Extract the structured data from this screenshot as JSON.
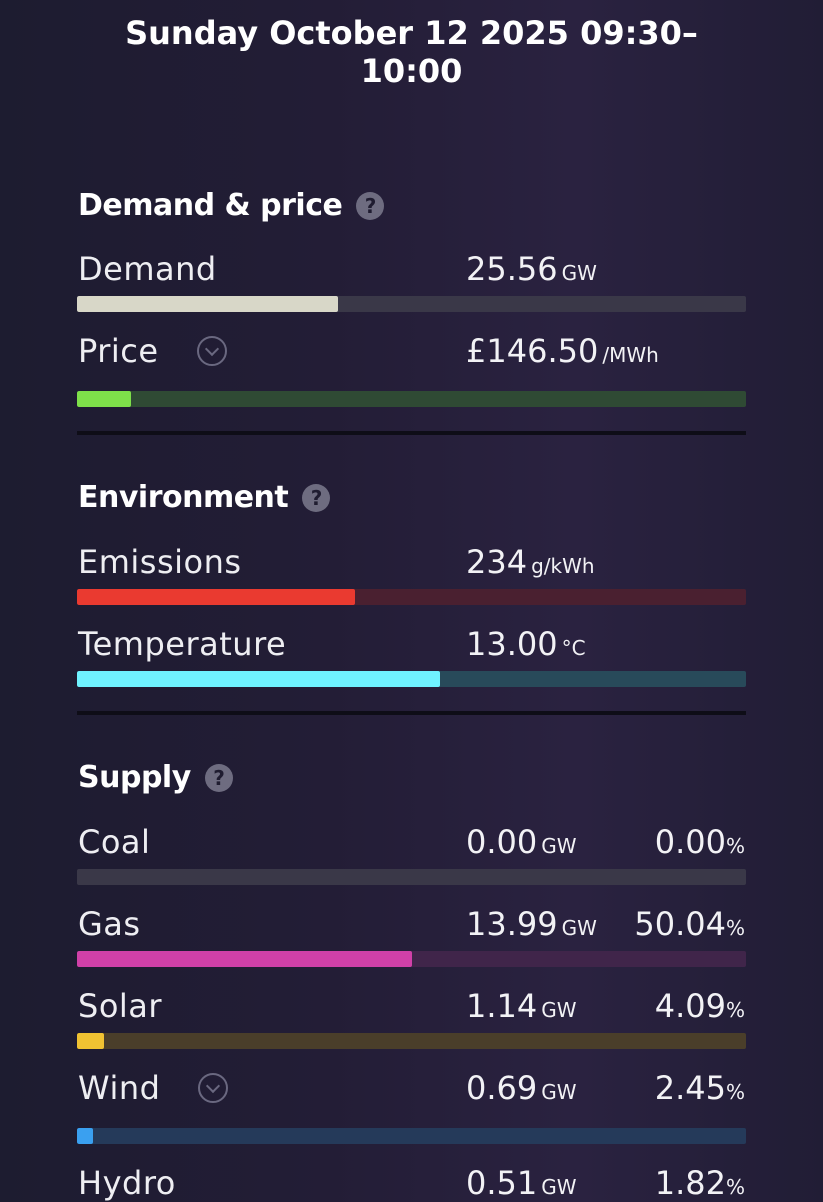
{
  "header": {
    "title_line1": "Sunday October 12 2025 09:30–",
    "title_line2": "10:00"
  },
  "demand_price": {
    "heading": "Demand & price",
    "help": "?",
    "demand": {
      "label": "Demand",
      "value": "25.56",
      "unit": "GW",
      "level": 0.39,
      "color": "#d8d7c8",
      "track": "#3a3848"
    },
    "price": {
      "label": "Price",
      "value": "£146.50",
      "unit": "/MWh",
      "level": 0.08,
      "color": "#7ee04a",
      "track": "#2f4a34"
    }
  },
  "environment": {
    "heading": "Environment",
    "help": "?",
    "emissions": {
      "label": "Emissions",
      "value": "234",
      "unit": "g/kWh",
      "level": 0.415,
      "color": "#ea3a30",
      "track": "#4a2030"
    },
    "temperature": {
      "label": "Temperature",
      "value": "13.00",
      "unit": "°C",
      "level": 0.543,
      "color": "#6ff2ff",
      "track": "#284a5a"
    }
  },
  "supply": {
    "heading": "Supply",
    "help": "?",
    "items": [
      {
        "label": "Coal",
        "value": "0.00",
        "unit": "GW",
        "pct": "0.00",
        "pct_unit": "%",
        "level": 0.0,
        "color": "#5a5868",
        "track": "#3a3848"
      },
      {
        "label": "Gas",
        "value": "13.99",
        "unit": "GW",
        "pct": "50.04",
        "pct_unit": "%",
        "level": 0.5004,
        "color": "#d040a8",
        "track": "#40254a"
      },
      {
        "label": "Solar",
        "value": "1.14",
        "unit": "GW",
        "pct": "4.09",
        "pct_unit": "%",
        "level": 0.0409,
        "color": "#f0c232",
        "track": "#4a3e2a"
      },
      {
        "label": "Wind",
        "value": "0.69",
        "unit": "GW",
        "pct": "2.45",
        "pct_unit": "%",
        "level": 0.0245,
        "color": "#3aa0f0",
        "track": "#253a5a"
      },
      {
        "label": "Hydro",
        "value": "0.51",
        "unit": "GW",
        "pct": "1.82",
        "pct_unit": "%"
      }
    ]
  }
}
